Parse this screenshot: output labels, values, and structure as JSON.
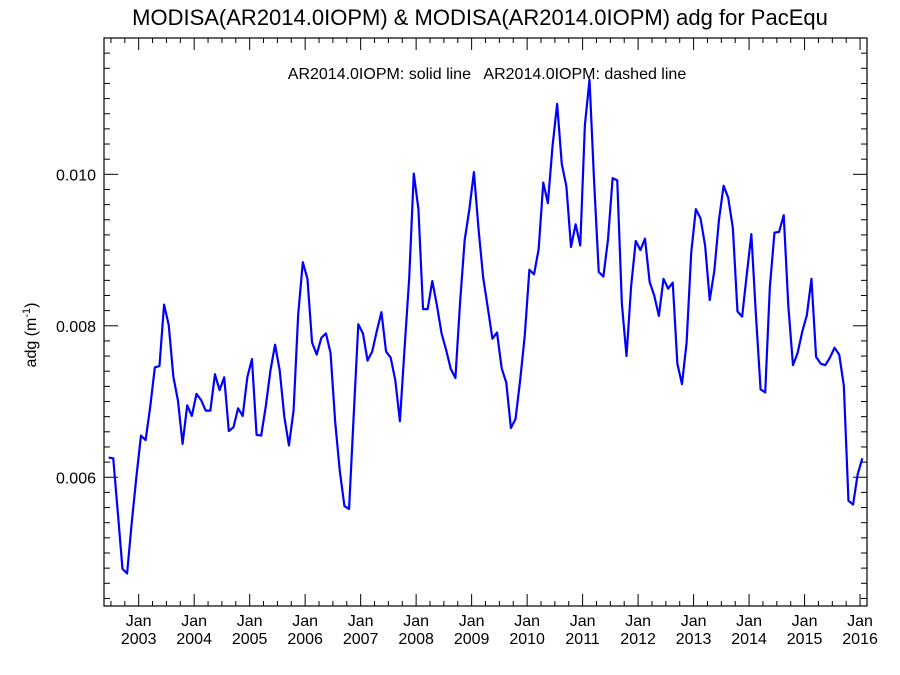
{
  "chart_data": {
    "type": "line",
    "title": "MODISA(AR2014.0IOPM) & MODISA(AR2014.0IOPM)  adg for PacEqu",
    "annotation": "AR2014.0IOPM: solid line   AR2014.0IOPM: dashed line",
    "ylabel_text": "adg (m",
    "ylabel_sup": "-1",
    "ylabel_close": ")",
    "xlabel": "",
    "xlim": [
      2002.375,
      2016.125
    ],
    "ylim": [
      0.0043,
      0.0118
    ],
    "yticks": [
      {
        "value": 0.006,
        "label": "0.006"
      },
      {
        "value": 0.008,
        "label": "0.008"
      },
      {
        "value": 0.01,
        "label": "0.010"
      }
    ],
    "xticks": [
      {
        "value": 2003.0,
        "month": "Jan",
        "year": "2003"
      },
      {
        "value": 2004.0,
        "month": "Jan",
        "year": "2004"
      },
      {
        "value": 2005.0,
        "month": "Jan",
        "year": "2005"
      },
      {
        "value": 2006.0,
        "month": "Jan",
        "year": "2006"
      },
      {
        "value": 2007.0,
        "month": "Jan",
        "year": "2007"
      },
      {
        "value": 2008.0,
        "month": "Jan",
        "year": "2008"
      },
      {
        "value": 2009.0,
        "month": "Jan",
        "year": "2009"
      },
      {
        "value": 2010.0,
        "month": "Jan",
        "year": "2010"
      },
      {
        "value": 2011.0,
        "month": "Jan",
        "year": "2011"
      },
      {
        "value": 2012.0,
        "month": "Jan",
        "year": "2012"
      },
      {
        "value": 2013.0,
        "month": "Jan",
        "year": "2013"
      },
      {
        "value": 2014.0,
        "month": "Jan",
        "year": "2014"
      },
      {
        "value": 2015.0,
        "month": "Jan",
        "year": "2015"
      },
      {
        "value": 2016.0,
        "month": "Jan",
        "year": "2016"
      }
    ],
    "series": [
      {
        "line_color": "#0000ff",
        "line_style": "solid",
        "start": 2002.458,
        "step": 0.08333,
        "values": [
          0.00626,
          0.00625,
          0.00553,
          0.00479,
          0.00473,
          0.0054,
          0.006,
          0.00655,
          0.00649,
          0.00693,
          0.00745,
          0.00747,
          0.00828,
          0.00801,
          0.00733,
          0.00701,
          0.00644,
          0.00695,
          0.00681,
          0.0071,
          0.00702,
          0.00688,
          0.00688,
          0.00736,
          0.00715,
          0.00732,
          0.00661,
          0.00666,
          0.00691,
          0.00681,
          0.00732,
          0.00756,
          0.00656,
          0.00655,
          0.00694,
          0.00741,
          0.00775,
          0.00741,
          0.0068,
          0.00642,
          0.00688,
          0.00815,
          0.00884,
          0.00862,
          0.00778,
          0.00762,
          0.00784,
          0.0079,
          0.00764,
          0.00673,
          0.00608,
          0.00562,
          0.00558,
          0.00681,
          0.00802,
          0.0079,
          0.00754,
          0.00766,
          0.00793,
          0.00818,
          0.00766,
          0.00758,
          0.00728,
          0.00674,
          0.0077,
          0.00862,
          0.01001,
          0.00954,
          0.00822,
          0.00822,
          0.00859,
          0.00827,
          0.0079,
          0.00768,
          0.00743,
          0.00731,
          0.0083,
          0.00913,
          0.00953,
          0.01003,
          0.00928,
          0.00864,
          0.00824,
          0.00783,
          0.00791,
          0.00744,
          0.00725,
          0.00665,
          0.00677,
          0.00728,
          0.00787,
          0.00874,
          0.00868,
          0.00901,
          0.00989,
          0.00962,
          0.01037,
          0.01093,
          0.01014,
          0.00984,
          0.00904,
          0.00934,
          0.00906,
          0.01065,
          0.01125,
          0.0099,
          0.00871,
          0.00865,
          0.00914,
          0.00995,
          0.00992,
          0.00829,
          0.0076,
          0.00852,
          0.00912,
          0.009,
          0.00915,
          0.00858,
          0.0084,
          0.00813,
          0.00862,
          0.00849,
          0.00857,
          0.0075,
          0.00723,
          0.00778,
          0.00897,
          0.00954,
          0.00942,
          0.00906,
          0.00834,
          0.00873,
          0.0094,
          0.00985,
          0.00969,
          0.00929,
          0.00819,
          0.00812,
          0.00867,
          0.00921,
          0.00813,
          0.00716,
          0.00712,
          0.00851,
          0.00923,
          0.00924,
          0.00946,
          0.00826,
          0.00748,
          0.00764,
          0.00792,
          0.00814,
          0.00862,
          0.00759,
          0.0075,
          0.00748,
          0.00758,
          0.00771,
          0.00762,
          0.00721,
          0.00569,
          0.00564,
          0.00604,
          0.00625
        ]
      }
    ]
  }
}
